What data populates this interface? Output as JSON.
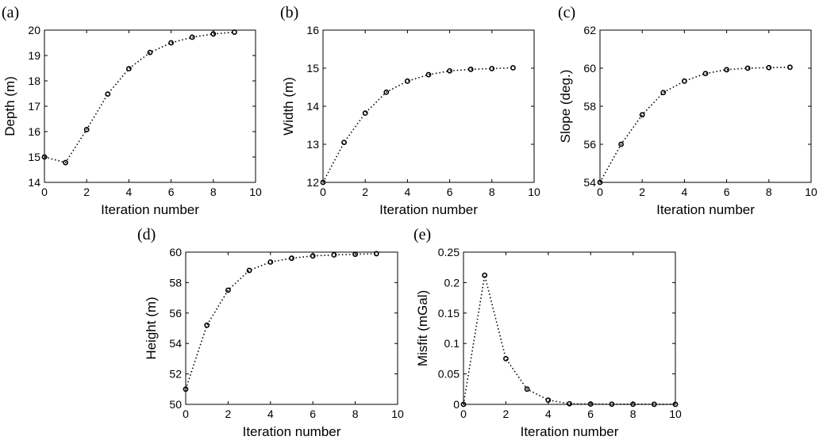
{
  "chart_data": [
    {
      "type": "line",
      "panel_label": "(a)",
      "xlabel": "Iteration number",
      "ylabel": "Depth (m)",
      "xlim": [
        0,
        10
      ],
      "ylim": [
        14,
        20
      ],
      "xticks": [
        "0",
        "2",
        "4",
        "6",
        "8",
        "10"
      ],
      "yticks": [
        "14",
        "15",
        "16",
        "17",
        "18",
        "19",
        "20"
      ],
      "grid": false,
      "series": [
        {
          "x": [
            0,
            1,
            2,
            3,
            4,
            5,
            6,
            7,
            8,
            9
          ],
          "values": [
            15.0,
            14.78,
            16.08,
            17.48,
            18.48,
            19.12,
            19.5,
            19.72,
            19.85,
            19.92
          ]
        }
      ]
    },
    {
      "type": "line",
      "panel_label": "(b)",
      "xlabel": "Iteration number",
      "ylabel": "Width (m)",
      "xlim": [
        0,
        10
      ],
      "ylim": [
        12,
        16
      ],
      "xticks": [
        "0",
        "2",
        "4",
        "6",
        "8",
        "10"
      ],
      "yticks": [
        "12",
        "13",
        "14",
        "15",
        "16"
      ],
      "grid": false,
      "series": [
        {
          "x": [
            0,
            1,
            2,
            3,
            4,
            5,
            6,
            7,
            8,
            9
          ],
          "values": [
            12.0,
            13.05,
            13.82,
            14.37,
            14.66,
            14.83,
            14.93,
            14.97,
            14.99,
            15.01
          ]
        }
      ]
    },
    {
      "type": "line",
      "panel_label": "(c)",
      "xlabel": "Iteration number",
      "ylabel": "Slope (deg.)",
      "xlim": [
        0,
        10
      ],
      "ylim": [
        54,
        62
      ],
      "xticks": [
        "0",
        "2",
        "4",
        "6",
        "8",
        "10"
      ],
      "yticks": [
        "54",
        "56",
        "58",
        "60",
        "62"
      ],
      "grid": false,
      "series": [
        {
          "x": [
            0,
            1,
            2,
            3,
            4,
            5,
            6,
            7,
            8,
            9
          ],
          "values": [
            54.0,
            56.0,
            57.55,
            58.72,
            59.32,
            59.72,
            59.92,
            60.0,
            60.03,
            60.05
          ]
        }
      ]
    },
    {
      "type": "line",
      "panel_label": "(d)",
      "xlabel": "Iteration number",
      "ylabel": "Height (m)",
      "xlim": [
        0,
        10
      ],
      "ylim": [
        50,
        60
      ],
      "xticks": [
        "0",
        "2",
        "4",
        "6",
        "8",
        "10"
      ],
      "yticks": [
        "50",
        "52",
        "54",
        "56",
        "58",
        "60"
      ],
      "grid": false,
      "series": [
        {
          "x": [
            0,
            1,
            2,
            3,
            4,
            5,
            6,
            7,
            8,
            9
          ],
          "values": [
            51.0,
            55.2,
            57.5,
            58.8,
            59.35,
            59.6,
            59.75,
            59.82,
            59.86,
            59.9
          ]
        }
      ]
    },
    {
      "type": "line",
      "panel_label": "(e)",
      "xlabel": "Iteration number",
      "ylabel": "Misfit (mGal)",
      "xlim": [
        0,
        10
      ],
      "ylim": [
        0,
        0.25
      ],
      "xticks": [
        "0",
        "2",
        "4",
        "6",
        "8",
        "10"
      ],
      "yticks": [
        "0",
        "0.05",
        "0.1",
        "0.15",
        "0.2",
        "0.25"
      ],
      "grid": false,
      "series": [
        {
          "x": [
            0,
            1,
            2,
            3,
            4,
            5,
            6,
            7,
            8,
            9,
            10
          ],
          "values": [
            0.0,
            0.212,
            0.075,
            0.025,
            0.007,
            0.001,
            0.0005,
            0.0003,
            0.0002,
            0.0001,
            0.0
          ]
        }
      ]
    }
  ]
}
